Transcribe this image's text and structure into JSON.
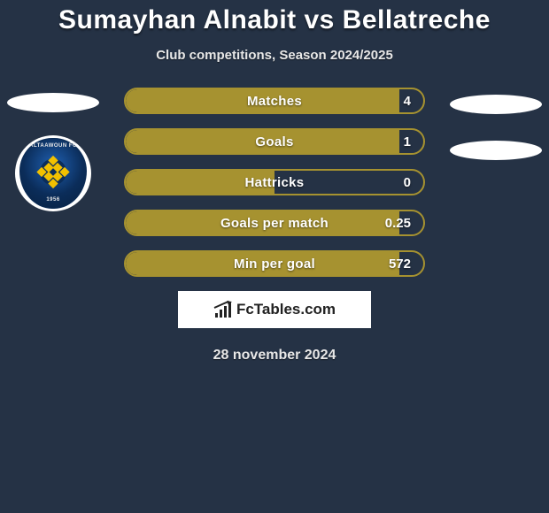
{
  "header": {
    "title": "Sumayhan Alnabit vs Bellatreche",
    "subtitle": "Club competitions, Season 2024/2025"
  },
  "left_player": {
    "club_crest": {
      "top_text": "ALTAAWOUN FC",
      "bottom_text": "1956",
      "bg_gradient_inner": "#1f5fb0",
      "bg_gradient_outer": "#07203f",
      "accent_color": "#f2c100"
    }
  },
  "right_player": {},
  "stats": {
    "type": "horizontal-bar-list",
    "pill_border_color": "#a69230",
    "pill_fill_color": "#a69230",
    "pill_bg_color": "#253245",
    "text_color": "#ffffff",
    "label_fontsize": 15,
    "value_fontsize": 15,
    "rows": [
      {
        "label": "Matches",
        "value": "4",
        "fill_pct": 92
      },
      {
        "label": "Goals",
        "value": "1",
        "fill_pct": 92
      },
      {
        "label": "Hattricks",
        "value": "0",
        "fill_pct": 50
      },
      {
        "label": "Goals per match",
        "value": "0.25",
        "fill_pct": 92
      },
      {
        "label": "Min per goal",
        "value": "572",
        "fill_pct": 92
      }
    ]
  },
  "brand": {
    "text": "FcTables.com"
  },
  "footer": {
    "date": "28 november 2024"
  },
  "colors": {
    "page_bg": "#253245",
    "oval": "#ffffff",
    "brand_box_bg": "#ffffff",
    "brand_text": "#222222"
  }
}
